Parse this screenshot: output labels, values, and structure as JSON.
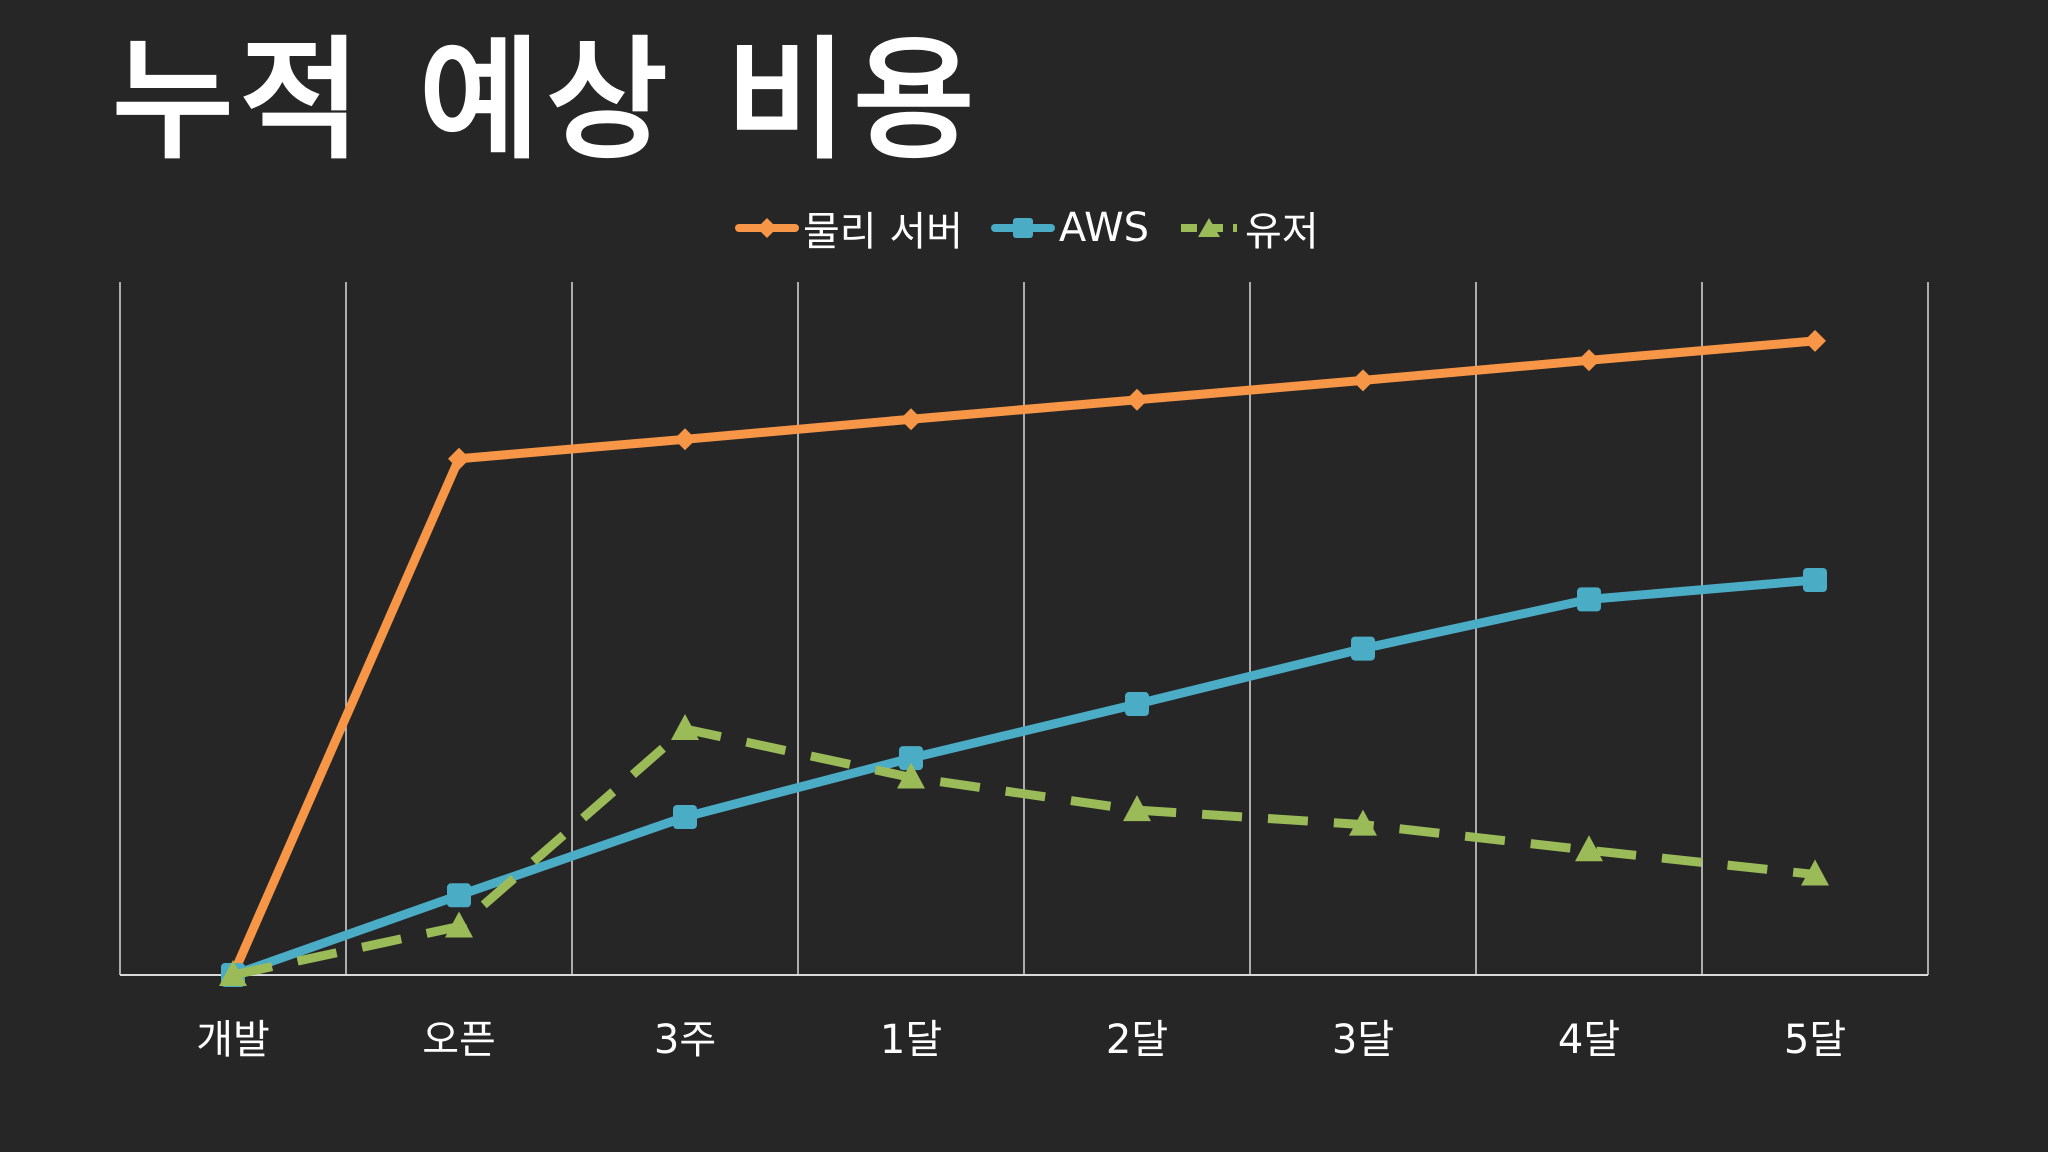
{
  "title": "누적 예상 비용",
  "chart_data": {
    "type": "line",
    "categories": [
      "개발",
      "오픈",
      "3주",
      "1달",
      "2달",
      "3달",
      "4달",
      "5달"
    ],
    "ylim": [
      0,
      100
    ],
    "grid": "vertical",
    "legend_placement": "top-center",
    "series": [
      {
        "name": "물리 서버",
        "values": [
          0,
          74.5,
          77.3,
          80.2,
          83.0,
          85.8,
          88.7,
          91.5
        ],
        "color": "#F79646",
        "marker": "diamond",
        "dash": "solid"
      },
      {
        "name": "AWS",
        "values": [
          0,
          11.5,
          22.8,
          31.3,
          39.1,
          47.1,
          54.2,
          57.0
        ],
        "color": "#4BACC6",
        "marker": "square",
        "dash": "solid"
      },
      {
        "name": "유저",
        "values": [
          0,
          7.0,
          35.5,
          28.5,
          23.8,
          21.7,
          18.0,
          14.5
        ],
        "color": "#9BBB59",
        "marker": "triangle",
        "dash": "dashed"
      }
    ]
  }
}
